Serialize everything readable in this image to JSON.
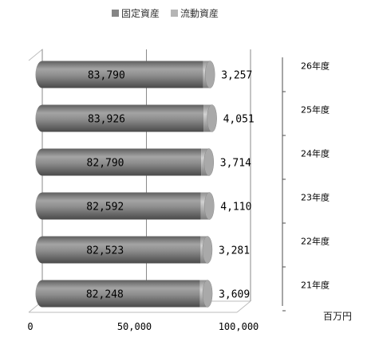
{
  "chart_data": {
    "type": "bar",
    "orientation": "horizontal",
    "stacked": true,
    "three_d": true,
    "categories": [
      "26年度",
      "25年度",
      "24年度",
      "23年度",
      "22年度",
      "21年度"
    ],
    "series": [
      {
        "name": "固定資産",
        "values": [
          83790,
          83926,
          82790,
          82592,
          82523,
          82248
        ],
        "labels": [
          "83,790",
          "83,926",
          "82,790",
          "82,592",
          "82,523",
          "82,248"
        ]
      },
      {
        "name": "流動資産",
        "values": [
          3257,
          4051,
          3714,
          4110,
          3281,
          3609
        ],
        "labels": [
          "3,257",
          "4,051",
          "3,714",
          "4,110",
          "3,281",
          "3,609"
        ]
      }
    ],
    "xlim": [
      0,
      100000
    ],
    "x_ticks": [
      0,
      50000,
      100000
    ],
    "x_tick_labels": [
      "0",
      "50,000",
      "100,000"
    ],
    "unit_label": "百万円",
    "legend_position": "top",
    "grid": true
  },
  "colors": {
    "fixed_assets": "#858585",
    "current_assets": "#b5b5b5"
  }
}
